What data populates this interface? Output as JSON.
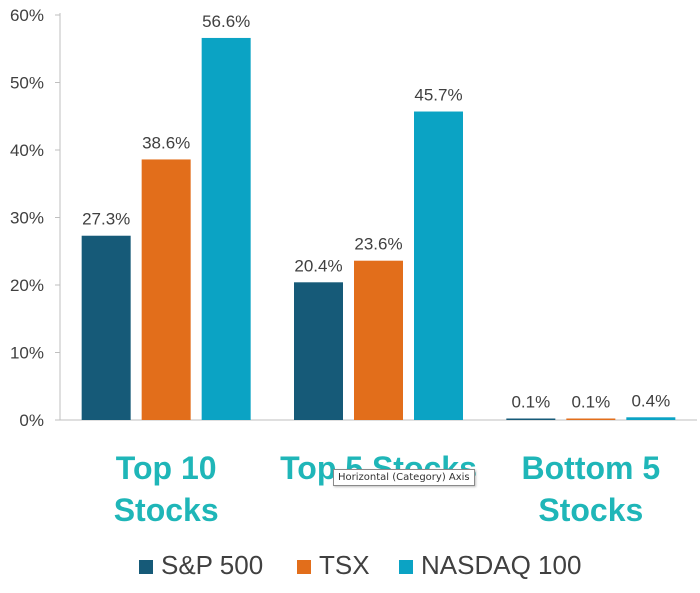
{
  "chart_data": {
    "type": "bar",
    "categories": [
      [
        "Top 10",
        "Stocks"
      ],
      [
        "Top 5 Stocks"
      ],
      [
        "Bottom 5",
        "Stocks"
      ]
    ],
    "series": [
      {
        "name": "S&P 500",
        "values": [
          27.3,
          20.4,
          0.1
        ],
        "labels": [
          "27.3%",
          "20.4%",
          "0.1%"
        ],
        "color": "#165a78"
      },
      {
        "name": "TSX",
        "values": [
          38.6,
          23.6,
          0.1
        ],
        "labels": [
          "38.6%",
          "23.6%",
          "0.1%"
        ],
        "color": "#e26e1b"
      },
      {
        "name": "NASDAQ 100",
        "values": [
          56.6,
          45.7,
          0.4
        ],
        "labels": [
          "56.6%",
          "45.7%",
          "0.4%"
        ],
        "color": "#0ba3c4"
      }
    ],
    "yticks": [
      "0%",
      "10%",
      "20%",
      "30%",
      "40%",
      "50%",
      "60%"
    ],
    "ylim": [
      0,
      60
    ],
    "legend_position": "bottom",
    "category_label_color": "#1fb6b8",
    "title": "",
    "xlabel": "",
    "ylabel": ""
  },
  "tooltip": "Horizontal (Category) Axis"
}
